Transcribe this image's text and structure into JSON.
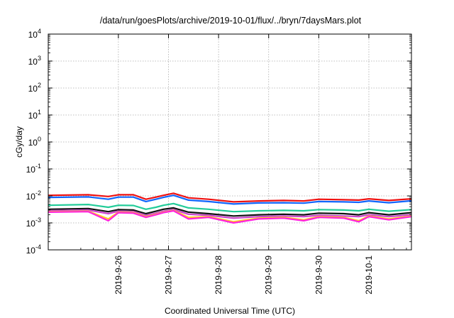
{
  "chart_data": {
    "type": "line",
    "title": "/data/run/goesPlots/archive/2019-10-01/flux/../bryn/7daysMars.plot",
    "xlabel": "Coordinated Universal Time (UTC)",
    "ylabel": "cGy/day",
    "yscale": "log",
    "ylim_exponent": [
      -4,
      4
    ],
    "y_ticks": [
      {
        "base": "10",
        "exp": "4"
      },
      {
        "base": "10",
        "exp": "3"
      },
      {
        "base": "10",
        "exp": "2"
      },
      {
        "base": "10",
        "exp": "1"
      },
      {
        "base": "10",
        "exp": "0"
      },
      {
        "base": "10",
        "exp": "-1"
      },
      {
        "base": "10",
        "exp": "-2"
      },
      {
        "base": "10",
        "exp": "-3"
      },
      {
        "base": "10",
        "exp": "-4"
      }
    ],
    "x_ticks": [
      "2019-9-26",
      "2019-9-27",
      "2019-9-28",
      "2019-9-29",
      "2019-9-30",
      "2019-10-1"
    ],
    "xlim_days": [
      -1.4,
      5.85
    ],
    "grid": true,
    "series": [
      {
        "color": "#ee1111",
        "x": [
          -1.4,
          -0.6,
          -0.2,
          0.0,
          0.3,
          0.55,
          0.75,
          0.9,
          1.1,
          1.4,
          1.8,
          2.3,
          2.8,
          3.3,
          3.7,
          4.0,
          4.5,
          4.8,
          5.0,
          5.4,
          5.85
        ],
        "values": [
          0.0105,
          0.011,
          0.0095,
          0.011,
          0.011,
          0.0075,
          0.009,
          0.0105,
          0.0125,
          0.0085,
          0.0075,
          0.006,
          0.0065,
          0.0068,
          0.0065,
          0.0075,
          0.0072,
          0.007,
          0.0078,
          0.0068,
          0.0078
        ]
      },
      {
        "color": "#1166ff",
        "x": [
          -1.4,
          -0.6,
          -0.2,
          0.0,
          0.3,
          0.55,
          0.75,
          0.9,
          1.1,
          1.4,
          1.8,
          2.3,
          2.8,
          3.3,
          3.7,
          4.0,
          4.5,
          4.8,
          5.0,
          5.4,
          5.85
        ],
        "values": [
          0.0088,
          0.0092,
          0.0075,
          0.009,
          0.009,
          0.0062,
          0.0075,
          0.0088,
          0.0105,
          0.007,
          0.0062,
          0.005,
          0.0055,
          0.0056,
          0.0054,
          0.0062,
          0.006,
          0.0058,
          0.0065,
          0.0056,
          0.0066
        ]
      },
      {
        "color": "#22cc99",
        "x": [
          -1.4,
          -0.6,
          -0.2,
          0.0,
          0.3,
          0.55,
          0.75,
          0.9,
          1.1,
          1.4,
          1.8,
          2.3,
          2.8,
          3.3,
          3.7,
          4.0,
          4.5,
          4.8,
          5.0,
          5.4,
          5.85
        ],
        "values": [
          0.0045,
          0.0048,
          0.0038,
          0.0045,
          0.0044,
          0.0032,
          0.0038,
          0.0045,
          0.0052,
          0.0036,
          0.0032,
          0.0026,
          0.0028,
          0.0029,
          0.0028,
          0.0031,
          0.003,
          0.0028,
          0.0032,
          0.0027,
          0.0031
        ]
      },
      {
        "color": "#111111",
        "x": [
          -1.4,
          -0.6,
          -0.2,
          0.0,
          0.3,
          0.55,
          0.75,
          0.9,
          1.1,
          1.4,
          1.8,
          2.3,
          2.8,
          3.3,
          3.7,
          4.0,
          4.5,
          4.8,
          5.0,
          5.4,
          5.85
        ],
        "values": [
          0.0032,
          0.0034,
          0.0026,
          0.0031,
          0.003,
          0.0022,
          0.0027,
          0.0032,
          0.0036,
          0.0025,
          0.0022,
          0.0018,
          0.002,
          0.0021,
          0.002,
          0.0023,
          0.0022,
          0.002,
          0.0024,
          0.002,
          0.0024
        ]
      },
      {
        "color": "#cc44cc",
        "x": [
          -1.4,
          -0.6,
          -0.2,
          0.0,
          0.3,
          0.55,
          0.75,
          0.9,
          1.1,
          1.4,
          1.8,
          2.3,
          2.8,
          3.3,
          3.7,
          4.0,
          4.5,
          4.8,
          5.0,
          5.4,
          5.85
        ],
        "values": [
          0.0028,
          0.003,
          0.0022,
          0.0027,
          0.0026,
          0.0019,
          0.0023,
          0.0027,
          0.0031,
          0.0021,
          0.0019,
          0.0015,
          0.0017,
          0.0018,
          0.0017,
          0.0019,
          0.0018,
          0.0017,
          0.002,
          0.0017,
          0.002
        ]
      },
      {
        "color": "#ffcc22",
        "x": [
          -1.4,
          -0.6,
          -0.2,
          0.0,
          0.3,
          0.55,
          0.75,
          0.9,
          1.1,
          1.4,
          1.8,
          2.3,
          2.8,
          3.3,
          3.7,
          4.0,
          4.5,
          4.8,
          5.0,
          5.4,
          5.85
        ],
        "values": [
          0.0026,
          0.0027,
          0.0014,
          0.0025,
          0.0024,
          0.0017,
          0.0021,
          0.0025,
          0.0029,
          0.0016,
          0.0017,
          0.0011,
          0.0015,
          0.0016,
          0.0013,
          0.0017,
          0.0016,
          0.0012,
          0.0018,
          0.0014,
          0.0018
        ]
      },
      {
        "color": "#ff22dd",
        "x": [
          -1.4,
          -0.6,
          -0.2,
          0.0,
          0.3,
          0.55,
          0.75,
          0.9,
          1.1,
          1.4,
          1.8,
          2.3,
          2.8,
          3.3,
          3.7,
          4.0,
          4.5,
          4.8,
          5.0,
          5.4,
          5.85
        ],
        "values": [
          0.0025,
          0.0026,
          0.0012,
          0.0024,
          0.0023,
          0.0016,
          0.002,
          0.0024,
          0.0028,
          0.0014,
          0.0016,
          0.001,
          0.0014,
          0.0015,
          0.0012,
          0.0016,
          0.0015,
          0.0011,
          0.0017,
          0.0013,
          0.0017
        ]
      }
    ]
  }
}
